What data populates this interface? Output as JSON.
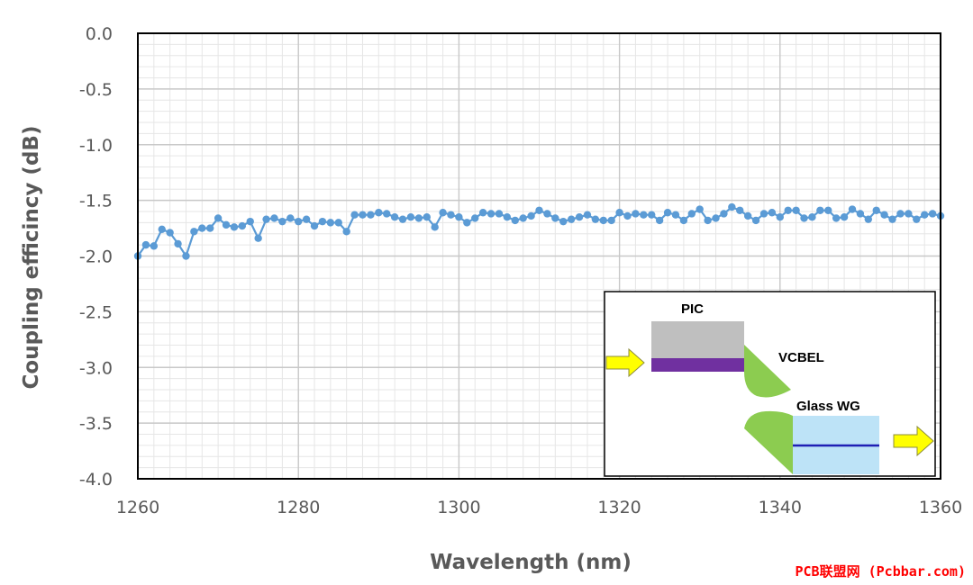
{
  "chart_data": {
    "type": "line",
    "xlabel": "Wavelength (nm)",
    "ylabel": "Coupling efficincy (dB)",
    "xlim": [
      1260,
      1360
    ],
    "ylim": [
      -4.0,
      0.0
    ],
    "x_ticks": [
      "1260",
      "1280",
      "1300",
      "1320",
      "1340",
      "1360"
    ],
    "y_ticks": [
      "0.0",
      "-0.5",
      "-1.0",
      "-1.5",
      "-2.0",
      "-2.5",
      "-3.0",
      "-3.5",
      "-4.0"
    ],
    "grid": true,
    "marker": "circle",
    "color": "#5b9bd5",
    "series": [
      {
        "x": [
          1260,
          1261,
          1262,
          1263,
          1264,
          1265,
          1266,
          1267,
          1268,
          1269,
          1270,
          1271,
          1272,
          1273,
          1274,
          1275,
          1276,
          1277,
          1278,
          1279,
          1280,
          1281,
          1282,
          1283,
          1284,
          1285,
          1286,
          1287,
          1288,
          1289,
          1290,
          1291,
          1292,
          1293,
          1294,
          1295,
          1296,
          1297,
          1298,
          1299,
          1300,
          1301,
          1302,
          1303,
          1304,
          1305,
          1306,
          1307,
          1308,
          1309,
          1310,
          1311,
          1312,
          1313,
          1314,
          1315,
          1316,
          1317,
          1318,
          1319,
          1320,
          1321,
          1322,
          1323,
          1324,
          1325,
          1326,
          1327,
          1328,
          1329,
          1330,
          1331,
          1332,
          1333,
          1334,
          1335,
          1336,
          1337,
          1338,
          1339,
          1340,
          1341,
          1342,
          1343,
          1344,
          1345,
          1346,
          1347,
          1348,
          1349,
          1350,
          1351,
          1352,
          1353,
          1354,
          1355,
          1356,
          1357,
          1358,
          1359,
          1360
        ],
        "values": [
          -2.0,
          -1.9,
          -1.91,
          -1.76,
          -1.79,
          -1.89,
          -2.0,
          -1.78,
          -1.75,
          -1.75,
          -1.66,
          -1.72,
          -1.74,
          -1.73,
          -1.69,
          -1.84,
          -1.67,
          -1.66,
          -1.69,
          -1.66,
          -1.69,
          -1.67,
          -1.73,
          -1.69,
          -1.7,
          -1.7,
          -1.78,
          -1.63,
          -1.63,
          -1.63,
          -1.61,
          -1.62,
          -1.65,
          -1.67,
          -1.65,
          -1.66,
          -1.65,
          -1.74,
          -1.61,
          -1.63,
          -1.65,
          -1.7,
          -1.66,
          -1.61,
          -1.62,
          -1.62,
          -1.65,
          -1.68,
          -1.66,
          -1.64,
          -1.59,
          -1.62,
          -1.66,
          -1.69,
          -1.67,
          -1.65,
          -1.63,
          -1.67,
          -1.68,
          -1.68,
          -1.61,
          -1.64,
          -1.62,
          -1.63,
          -1.63,
          -1.68,
          -1.61,
          -1.63,
          -1.68,
          -1.62,
          -1.58,
          -1.68,
          -1.66,
          -1.62,
          -1.56,
          -1.59,
          -1.64,
          -1.68,
          -1.62,
          -1.61,
          -1.65,
          -1.59,
          -1.59,
          -1.66,
          -1.65,
          -1.59,
          -1.59,
          -1.66,
          -1.65,
          -1.58,
          -1.62,
          -1.67,
          -1.59,
          -1.63,
          -1.67,
          -1.62,
          -1.62,
          -1.67,
          -1.63,
          -1.62,
          -1.64
        ]
      }
    ]
  },
  "inset": {
    "pic_label": "PIC",
    "vcbel_label": "VCBEL",
    "glass_wg_label": "Glass WG",
    "colors": {
      "pic_body": "#bfbfbf",
      "pic_waveguide": "#7030a0",
      "mirror": "#8ccc50",
      "glass_body": "#bde3f7",
      "glass_core": "#1f1fb4",
      "arrow": "#ffff00"
    }
  },
  "watermark": "PCB联盟网 (Pcbbar.com)"
}
